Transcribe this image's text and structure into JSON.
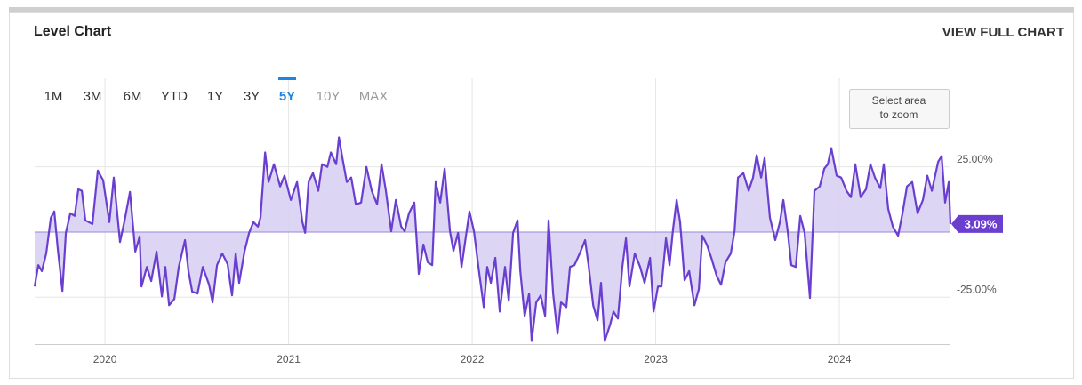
{
  "header": {
    "title": "Level Chart",
    "link": "VIEW FULL CHART"
  },
  "range_buttons": [
    {
      "label": "1M",
      "state": "normal"
    },
    {
      "label": "3M",
      "state": "normal"
    },
    {
      "label": "6M",
      "state": "normal"
    },
    {
      "label": "YTD",
      "state": "normal"
    },
    {
      "label": "1Y",
      "state": "normal"
    },
    {
      "label": "3Y",
      "state": "normal"
    },
    {
      "label": "5Y",
      "state": "selected"
    },
    {
      "label": "10Y",
      "state": "disabled"
    },
    {
      "label": "MAX",
      "state": "disabled"
    }
  ],
  "zoom_hint": [
    "Select area",
    "to zoom"
  ],
  "chart_data": {
    "type": "area",
    "color": "#6a3fd0",
    "fill": "#d9d0f3",
    "x": [
      2019.617,
      2019.637,
      2019.656,
      2019.68,
      2019.705,
      2019.724,
      2019.743,
      2019.768,
      2019.787,
      2019.811,
      2019.835,
      2019.855,
      2019.874,
      2019.893,
      2019.932,
      2019.961,
      2019.99,
      2020.024,
      2020.048,
      2020.082,
      2020.107,
      2020.136,
      2020.165,
      2020.189,
      2020.199,
      2020.228,
      2020.252,
      2020.281,
      2020.31,
      2020.329,
      2020.349,
      2020.378,
      2020.402,
      2020.436,
      2020.455,
      2020.475,
      2020.504,
      2020.533,
      2020.567,
      2020.586,
      2020.61,
      2020.639,
      2020.668,
      2020.692,
      2020.712,
      2020.731,
      2020.76,
      2020.785,
      2020.809,
      2020.833,
      2020.847,
      2020.872,
      2020.891,
      2020.92,
      2020.954,
      2020.978,
      2021.012,
      2021.046,
      2021.075,
      2021.09,
      2021.109,
      2021.133,
      2021.162,
      2021.182,
      2021.211,
      2021.23,
      2021.259,
      2021.274,
      2021.293,
      2021.317,
      2021.341,
      2021.366,
      2021.395,
      2021.424,
      2021.453,
      2021.482,
      2021.506,
      2021.53,
      2021.559,
      2021.584,
      2021.613,
      2021.632,
      2021.656,
      2021.685,
      2021.709,
      2021.734,
      2021.758,
      2021.782,
      2021.801,
      2021.826,
      2021.85,
      2021.879,
      2021.898,
      2021.923,
      2021.942,
      2021.966,
      2021.985,
      2022.01,
      2022.034,
      2022.063,
      2022.082,
      2022.102,
      2022.126,
      2022.15,
      2022.179,
      2022.199,
      2022.223,
      2022.247,
      2022.262,
      2022.286,
      2022.31,
      2022.324,
      2022.349,
      2022.373,
      2022.397,
      2022.416,
      2022.441,
      2022.465,
      2022.484,
      2022.513,
      2022.533,
      2022.557,
      2022.586,
      2022.615,
      2022.634,
      2022.659,
      2022.683,
      2022.702,
      2022.722,
      2022.751,
      2022.77,
      2022.794,
      2022.818,
      2022.838,
      2022.857,
      2022.886,
      2022.915,
      2022.939,
      2022.969,
      2022.988,
      2023.012,
      2023.031,
      2023.056,
      2023.075,
      2023.094,
      2023.114,
      2023.133,
      2023.157,
      2023.182,
      2023.211,
      2023.235,
      2023.254,
      2023.278,
      2023.303,
      2023.332,
      2023.356,
      2023.38,
      2023.409,
      2023.429,
      2023.448,
      2023.477,
      2023.506,
      2023.53,
      2023.55,
      2023.574,
      2023.593,
      2023.622,
      2023.651,
      2023.676,
      2023.695,
      2023.719,
      2023.738,
      2023.763,
      2023.787,
      2023.811,
      2023.84,
      2023.864,
      2023.893,
      2023.918,
      2023.937,
      2023.956,
      2023.985,
      2024.01,
      2024.039,
      2024.063,
      2024.087,
      2024.116,
      2024.145,
      2024.169,
      2024.194,
      2024.223,
      2024.242,
      2024.266,
      2024.291,
      2024.32,
      2024.344,
      2024.368,
      2024.397,
      2024.426,
      2024.455,
      2024.479,
      2024.504,
      2024.538,
      2024.557,
      2024.576,
      2024.596,
      2024.605
    ],
    "values": [
      -20.9,
      -12.7,
      -15,
      -8.2,
      5.5,
      7.9,
      -6.5,
      -22.6,
      -0.3,
      7.2,
      6.2,
      16.4,
      15.8,
      4.5,
      3.1,
      23.6,
      19.9,
      3.8,
      20.9,
      -3.8,
      4.5,
      15.4,
      -7.5,
      -1.7,
      -20.9,
      -13.4,
      -18.8,
      -7.5,
      -24.7,
      -13.4,
      -28.1,
      -25.7,
      -13.4,
      -3.1,
      -15,
      -22.9,
      -23.6,
      -13.4,
      -20.2,
      -27,
      -12.7,
      -8.2,
      -12.3,
      -24.3,
      -8.2,
      -19.5,
      -7.5,
      -0.3,
      3.8,
      2.1,
      5.5,
      30.5,
      19.2,
      26,
      17.5,
      21.6,
      12.3,
      19.2,
      3.8,
      -0.3,
      19.2,
      22.6,
      15.8,
      26,
      25,
      30.5,
      26,
      36.3,
      28.4,
      19.2,
      20.9,
      10.6,
      11.3,
      25,
      15.8,
      10.6,
      26,
      15.8,
      0.3,
      12.3,
      2.1,
      0.3,
      7.2,
      11.3,
      -16.1,
      -4.8,
      -11.6,
      -12.7,
      19.2,
      11.3,
      24.3,
      0.3,
      -7.2,
      -0.3,
      -13.4,
      -1.4,
      7.9,
      0.3,
      -13.4,
      -28.8,
      -13.4,
      -19.5,
      -9.9,
      -30.5,
      -13.4,
      -26.4,
      -0.3,
      4.5,
      -15,
      -32.2,
      -23.6,
      -41.8,
      -27,
      -24.3,
      -32.2,
      4.5,
      -23.6,
      -39,
      -27,
      -28.8,
      -13.4,
      -12.7,
      -8.2,
      -3.1,
      -12.7,
      -28.1,
      -33.9,
      -19.5,
      -41.8,
      -35.6,
      -30.5,
      -33.2,
      -13.4,
      -2.4,
      -20.9,
      -8.2,
      -13.4,
      -19.5,
      -9.9,
      -30.5,
      -20.9,
      -20.9,
      -2.4,
      -12.7,
      1,
      12.3,
      3.8,
      -18.5,
      -15,
      -28.1,
      -21.9,
      -1.4,
      -4.8,
      -9.9,
      -16.8,
      -20.2,
      -11.6,
      -8.2,
      0.3,
      20.9,
      22.6,
      15.8,
      20.9,
      29.5,
      20.9,
      28.4,
      5.5,
      -3.1,
      3.8,
      12.3,
      0.3,
      -12.7,
      -13.4,
      6.2,
      -0.3,
      -25.3,
      15.8,
      17.5,
      24.3,
      26,
      32.2,
      21.6,
      20.9,
      15.8,
      13.4,
      26,
      13.4,
      16.4,
      26,
      20.9,
      16.8,
      26,
      8.9,
      2.1,
      -1.4,
      7.2,
      17.5,
      19.2,
      7.2,
      12.3,
      21.6,
      15.8,
      27,
      29.1,
      11.3,
      19.2,
      3.09
    ],
    "last_value_label": "3.09%",
    "xlim": [
      2019.617,
      2024.605
    ],
    "xticks": [
      2020,
      2021,
      2022,
      2023,
      2024
    ],
    "ylim": [
      -43,
      59
    ],
    "yticks": [
      {
        "value": 25,
        "label": "25.00%"
      },
      {
        "value": 0,
        "label": ""
      },
      {
        "value": -25,
        "label": "-25.00%"
      }
    ],
    "grid": true
  }
}
